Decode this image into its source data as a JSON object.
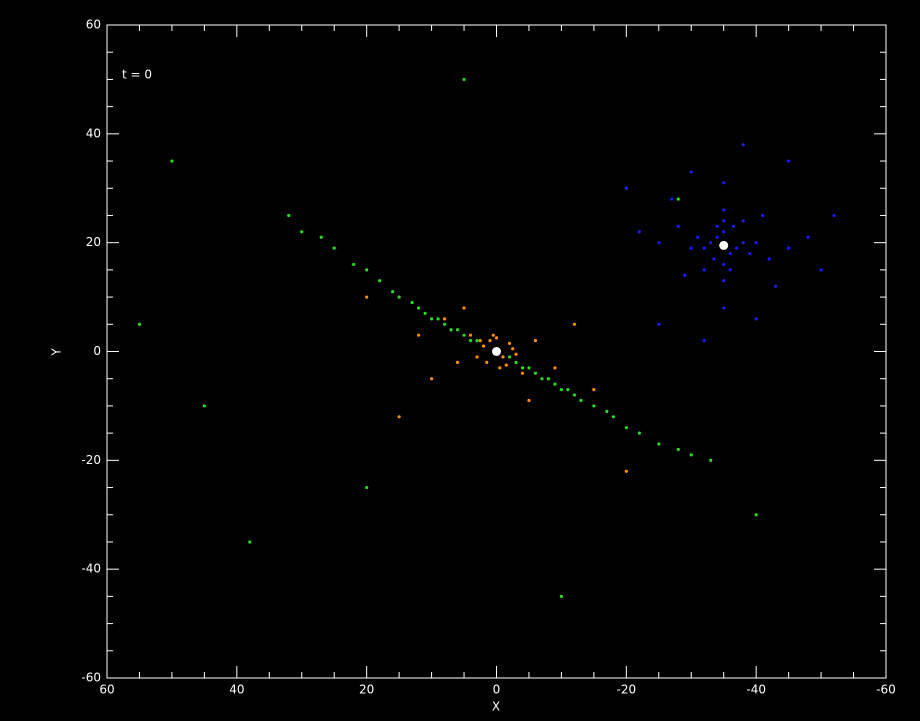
{
  "chart_data": {
    "type": "scatter",
    "background": "#000000",
    "annotation": "t = 0",
    "x_label": "X",
    "y_label": "Y",
    "xlim": [
      60,
      -60
    ],
    "ylim": [
      -60,
      60
    ],
    "xticks": [
      60,
      40,
      20,
      0,
      -20,
      -40,
      -60
    ],
    "yticks": [
      -60,
      -40,
      -20,
      0,
      20,
      40,
      60
    ],
    "minor_ticks": true,
    "series": [
      {
        "color": "#22dd22",
        "x": [
          32,
          30,
          27,
          25,
          22,
          20,
          18,
          16,
          15,
          13,
          12,
          11,
          10,
          9,
          8,
          7,
          6,
          5,
          4,
          3,
          2,
          -2,
          -3,
          -4,
          -5,
          -6,
          -7,
          -8,
          -9,
          -10,
          -11,
          -12,
          -13,
          -15,
          -17,
          -18,
          -20,
          -22,
          -25,
          -28,
          -30,
          -33,
          45,
          50,
          -20,
          38,
          -10,
          20,
          55,
          -40,
          5,
          -28
        ],
        "y": [
          25,
          22,
          21,
          19,
          16,
          15,
          13,
          11,
          10,
          9,
          8,
          7,
          6,
          6,
          5,
          4,
          4,
          3,
          2,
          2,
          1,
          -1,
          -2,
          -3,
          -3,
          -4,
          -5,
          -5,
          -6,
          -7,
          -7,
          -8,
          -9,
          -10,
          -11,
          -12,
          -14,
          -15,
          -17,
          -18,
          -19,
          -20,
          -10,
          35,
          30,
          -35,
          -45,
          -25,
          5,
          -30,
          50,
          28
        ]
      },
      {
        "color": "#ff8c00",
        "x": [
          2,
          1,
          0,
          -1,
          -2,
          3,
          -3,
          1.5,
          -1.5,
          0.5,
          -0.5,
          2.5,
          -2.5,
          4,
          -4,
          6,
          -6,
          8,
          -9,
          10,
          -12,
          5,
          -5,
          12,
          -15,
          15,
          -20,
          20
        ],
        "y": [
          1,
          2,
          2.5,
          -1,
          1.5,
          -1,
          -0.5,
          -2,
          -2.5,
          3,
          -3,
          2,
          0.5,
          3,
          -4,
          -2,
          2,
          6,
          -3,
          -5,
          5,
          8,
          -9,
          3,
          -7,
          -12,
          -22,
          10
        ]
      },
      {
        "color": "#1a1aff",
        "x": [
          -33,
          -34,
          -35,
          -36,
          -37,
          -32,
          -38,
          -33.5,
          -36.5,
          -35,
          -35,
          -31,
          -39,
          -34,
          -36,
          -30,
          -40,
          -32,
          -38,
          -35,
          -35,
          -28,
          -42,
          -29,
          -41,
          -25,
          -45,
          -27,
          -43,
          -35,
          -35,
          -22,
          -48,
          -30,
          -40,
          -50,
          -20,
          -45,
          -25,
          -52,
          -38,
          -32
        ],
        "y": [
          20,
          21,
          22,
          18,
          19,
          19,
          20,
          17,
          23,
          24,
          16,
          21,
          18,
          23,
          15,
          19,
          20,
          15,
          24,
          26,
          13,
          23,
          17,
          14,
          25,
          20,
          19,
          28,
          12,
          31,
          8,
          22,
          21,
          33,
          6,
          15,
          30,
          35,
          5,
          25,
          38,
          2
        ]
      },
      {
        "color": "#ffffff",
        "x": [
          0,
          -35
        ],
        "y": [
          0,
          19.5
        ]
      }
    ]
  }
}
